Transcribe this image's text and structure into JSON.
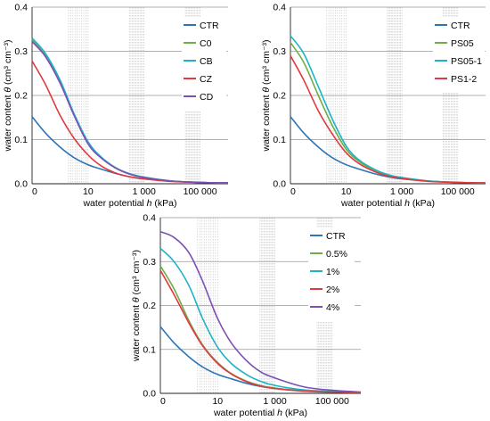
{
  "colors": {
    "CTR": "#2E75B6",
    "C0": "#70AD47",
    "CB": "#1CB3C8",
    "CZ": "#E0393E",
    "CD": "#7B4FB6",
    "PS05": "#70AD47",
    "PS05-1": "#1CB3C8",
    "PS1-2": "#E0393E",
    "0.5%": "#70AD47",
    "1%": "#1CB3C8",
    "2%": "#E0393E",
    "4%": "#7B4FB6",
    "grid": "#999999",
    "vline": "#c8c8c8"
  },
  "chart_data": [
    {
      "type": "line",
      "xscale": "log",
      "xlabel_prefix": "water potential ",
      "xlabel_var": "h",
      "xlabel_suffix": " (kPa)",
      "ylabel_prefix": "water content ",
      "ylabel_var": "θ",
      "ylabel_unit": " (cm³ cm⁻³)",
      "xticks": [
        "0",
        "10",
        "1 000",
        "100 000"
      ],
      "yticks": [
        "0.0",
        "0.1",
        "0.2",
        "0.3",
        "0.4"
      ],
      "ylim": [
        0,
        0.4
      ],
      "grid": "horizontal",
      "legend_position": "top-right",
      "x": [
        0.1,
        0.3,
        1,
        3,
        10,
        30,
        100,
        300,
        1000,
        10000,
        100000,
        1000000
      ],
      "series": [
        {
          "name": "CTR",
          "values": [
            0.152,
            0.115,
            0.083,
            0.06,
            0.043,
            0.033,
            0.023,
            0.016,
            0.011,
            0.006,
            0.003,
            0.002
          ]
        },
        {
          "name": "C0",
          "values": [
            0.326,
            0.29,
            0.23,
            0.16,
            0.092,
            0.058,
            0.035,
            0.022,
            0.014,
            0.006,
            0.003,
            0.002
          ]
        },
        {
          "name": "CB",
          "values": [
            0.33,
            0.295,
            0.235,
            0.162,
            0.095,
            0.06,
            0.036,
            0.023,
            0.015,
            0.006,
            0.003,
            0.002
          ]
        },
        {
          "name": "CZ",
          "values": [
            0.278,
            0.225,
            0.155,
            0.105,
            0.065,
            0.04,
            0.024,
            0.016,
            0.011,
            0.005,
            0.003,
            0.002
          ]
        },
        {
          "name": "CD",
          "values": [
            0.322,
            0.288,
            0.228,
            0.158,
            0.09,
            0.058,
            0.035,
            0.022,
            0.014,
            0.006,
            0.003,
            0.002
          ]
        }
      ]
    },
    {
      "type": "line",
      "xscale": "log",
      "xlabel_prefix": "water potential ",
      "xlabel_var": "h",
      "xlabel_suffix": " (kPa)",
      "ylabel_prefix": "water content ",
      "ylabel_var": "θ",
      "ylabel_unit": " (cm³ cm⁻³)",
      "xticks": [
        "0",
        "10",
        "1 000",
        "100 000"
      ],
      "yticks": [
        "0.0",
        "0.1",
        "0.2",
        "0.3",
        "0.4"
      ],
      "ylim": [
        0,
        0.4
      ],
      "grid": "horizontal",
      "legend_position": "top-right",
      "x": [
        0.1,
        0.3,
        1,
        3,
        10,
        30,
        100,
        300,
        1000,
        10000,
        100000,
        1000000
      ],
      "series": [
        {
          "name": "CTR",
          "values": [
            0.152,
            0.115,
            0.083,
            0.06,
            0.043,
            0.033,
            0.023,
            0.016,
            0.011,
            0.006,
            0.003,
            0.002
          ]
        },
        {
          "name": "PS05",
          "values": [
            0.32,
            0.275,
            0.2,
            0.135,
            0.078,
            0.05,
            0.031,
            0.02,
            0.013,
            0.006,
            0.003,
            0.002
          ]
        },
        {
          "name": "PS05-1",
          "values": [
            0.335,
            0.295,
            0.22,
            0.15,
            0.085,
            0.053,
            0.033,
            0.021,
            0.014,
            0.006,
            0.003,
            0.002
          ]
        },
        {
          "name": "PS1-2",
          "values": [
            0.29,
            0.235,
            0.165,
            0.115,
            0.07,
            0.045,
            0.028,
            0.018,
            0.012,
            0.005,
            0.003,
            0.002
          ]
        }
      ]
    },
    {
      "type": "line",
      "xscale": "log",
      "xlabel_prefix": "water potential ",
      "xlabel_var": "h",
      "xlabel_suffix": " (kPa)",
      "ylabel_prefix": "water content ",
      "ylabel_var": "θ",
      "ylabel_unit": " (cm³ cm⁻³)",
      "xticks": [
        "0",
        "10",
        "1 000",
        "100 000"
      ],
      "yticks": [
        "0.0",
        "0.1",
        "0.2",
        "0.3",
        "0.4"
      ],
      "ylim": [
        0,
        0.4
      ],
      "grid": "horizontal",
      "legend_position": "top-right",
      "x": [
        0.1,
        0.3,
        1,
        3,
        10,
        30,
        100,
        300,
        1000,
        10000,
        100000,
        1000000
      ],
      "series": [
        {
          "name": "CTR",
          "values": [
            0.152,
            0.115,
            0.083,
            0.06,
            0.043,
            0.033,
            0.023,
            0.016,
            0.011,
            0.006,
            0.003,
            0.002
          ]
        },
        {
          "name": "0.5%",
          "values": [
            0.29,
            0.238,
            0.165,
            0.11,
            0.07,
            0.045,
            0.028,
            0.018,
            0.012,
            0.005,
            0.003,
            0.002
          ]
        },
        {
          "name": "1%",
          "values": [
            0.33,
            0.3,
            0.245,
            0.17,
            0.105,
            0.068,
            0.043,
            0.028,
            0.018,
            0.008,
            0.004,
            0.002
          ]
        },
        {
          "name": "2%",
          "values": [
            0.28,
            0.225,
            0.16,
            0.108,
            0.068,
            0.044,
            0.027,
            0.017,
            0.011,
            0.005,
            0.003,
            0.002
          ]
        },
        {
          "name": "4%",
          "values": [
            0.368,
            0.355,
            0.32,
            0.255,
            0.17,
            0.115,
            0.075,
            0.05,
            0.035,
            0.015,
            0.007,
            0.003
          ]
        }
      ]
    }
  ]
}
